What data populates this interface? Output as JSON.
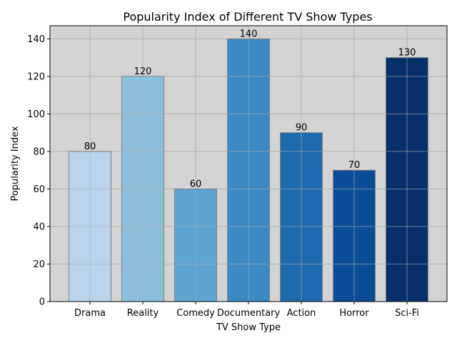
{
  "chart_data": {
    "type": "bar",
    "title": "Popularity Index of Different TV Show Types",
    "xlabel": "TV Show Type",
    "ylabel": "Popularity Index",
    "categories": [
      "Drama",
      "Reality",
      "Comedy",
      "Documentary",
      "Action",
      "Horror",
      "Sci-Fi"
    ],
    "values": [
      80,
      120,
      60,
      140,
      90,
      70,
      130
    ],
    "bar_colors": [
      "#b8d3ea",
      "#8cbfdd",
      "#5fa5d2",
      "#3c89c4",
      "#1f69ae",
      "#0a4c96",
      "#072f6a"
    ],
    "data_labels": [
      "80",
      "120",
      "60",
      "140",
      "90",
      "70",
      "130"
    ],
    "yticks": [
      0,
      20,
      40,
      60,
      80,
      100,
      120,
      140
    ],
    "ylim": [
      0,
      147
    ],
    "grid": true,
    "background_color": "#d3d3d3",
    "bar_edge_color": "#808080"
  }
}
